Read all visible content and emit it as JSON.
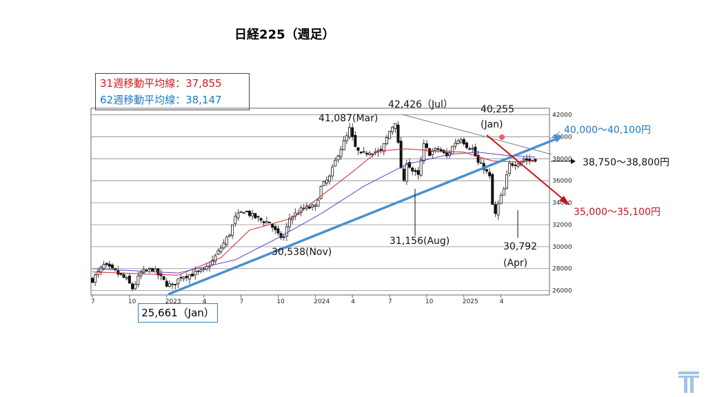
{
  "title": "日経225（週足）",
  "legend": {
    "ma31": "31週移動平均線：37,855",
    "ma62": "62週移動平均線：38,147"
  },
  "colors": {
    "ma31": "#d0202a",
    "ma62": "#5a3fc8",
    "trend_up": "#4a8fd0",
    "trend_down": "#c0141c",
    "candle": "#111111",
    "upper_line": "#777777"
  },
  "chart_data": {
    "type": "candlestick",
    "y_ticks": [
      26000,
      28000,
      30000,
      32000,
      34000,
      36000,
      38000,
      40000,
      42000
    ],
    "ylim": [
      25600,
      42600
    ],
    "x_tick_labels": [
      "7",
      "10",
      "2023",
      "4",
      "7",
      "10",
      "2024",
      "4",
      "7",
      "10",
      "2025",
      "4"
    ],
    "x_ticks_week": [
      0,
      13,
      26,
      39,
      52,
      65,
      78,
      91,
      104,
      117,
      130,
      143
    ],
    "weeks": 160,
    "close_anchors": [
      [
        0,
        27000
      ],
      [
        4,
        28300
      ],
      [
        8,
        27700
      ],
      [
        12,
        27000
      ],
      [
        14,
        26200
      ],
      [
        17,
        27600
      ],
      [
        21,
        28000
      ],
      [
        26,
        26600
      ],
      [
        28,
        26400
      ],
      [
        31,
        27300
      ],
      [
        35,
        27500
      ],
      [
        39,
        27800
      ],
      [
        42,
        28700
      ],
      [
        46,
        30300
      ],
      [
        48,
        31200
      ],
      [
        50,
        32600
      ],
      [
        53,
        33300
      ],
      [
        56,
        32800
      ],
      [
        59,
        32400
      ],
      [
        62,
        32200
      ],
      [
        65,
        31000
      ],
      [
        67,
        30800
      ],
      [
        69,
        32600
      ],
      [
        74,
        33500
      ],
      [
        78,
        33600
      ],
      [
        80,
        35400
      ],
      [
        83,
        36300
      ],
      [
        86,
        38500
      ],
      [
        89,
        40000
      ],
      [
        90,
        40700
      ],
      [
        92,
        39000
      ],
      [
        94,
        38300
      ],
      [
        97,
        38700
      ],
      [
        101,
        38600
      ],
      [
        104,
        40500
      ],
      [
        106,
        41400
      ],
      [
        108,
        37200
      ],
      [
        109,
        35800
      ],
      [
        110,
        37800
      ],
      [
        112,
        36900
      ],
      [
        114,
        36400
      ],
      [
        116,
        39200
      ],
      [
        118,
        38500
      ],
      [
        121,
        38900
      ],
      [
        124,
        38200
      ],
      [
        127,
        39500
      ],
      [
        129,
        39900
      ],
      [
        131,
        39200
      ],
      [
        133,
        38900
      ],
      [
        135,
        37600
      ],
      [
        137,
        37200
      ],
      [
        139,
        36300
      ],
      [
        140,
        33800
      ],
      [
        141,
        32900
      ],
      [
        142,
        33800
      ],
      [
        144,
        35200
      ],
      [
        146,
        37500
      ],
      [
        148,
        37600
      ],
      [
        151,
        38000
      ],
      [
        153,
        37800
      ],
      [
        155,
        38000
      ]
    ],
    "ma31_anchors": [
      [
        0,
        27700
      ],
      [
        20,
        27500
      ],
      [
        30,
        27400
      ],
      [
        45,
        29000
      ],
      [
        55,
        31500
      ],
      [
        70,
        32600
      ],
      [
        80,
        34600
      ],
      [
        90,
        36600
      ],
      [
        100,
        38700
      ],
      [
        110,
        38900
      ],
      [
        120,
        38700
      ],
      [
        130,
        38600
      ],
      [
        140,
        37800
      ],
      [
        150,
        37700
      ],
      [
        155,
        37855
      ]
    ],
    "ma62_anchors": [
      [
        0,
        28000
      ],
      [
        30,
        27600
      ],
      [
        50,
        28800
      ],
      [
        65,
        30800
      ],
      [
        80,
        33000
      ],
      [
        95,
        35500
      ],
      [
        110,
        37500
      ],
      [
        125,
        38400
      ],
      [
        135,
        38600
      ],
      [
        145,
        38300
      ],
      [
        155,
        38147
      ]
    ],
    "annotations": {
      "high_mar": "41,087(Mar)",
      "high_jul": "42,426（Jul）",
      "high_jan_value": "40,255",
      "high_jan_month": "(Jan)",
      "low_nov": "30,538(Nov)",
      "low_aug": "31,156(Aug)",
      "low_apr_value": "30,792",
      "low_apr_month": "(Apr)",
      "low_jan": "25,661（Jan）",
      "target_upper": "40,000〜40,100円",
      "target_mid": "38,750〜38,800円",
      "target_lower": "35,000〜35,100円"
    }
  }
}
